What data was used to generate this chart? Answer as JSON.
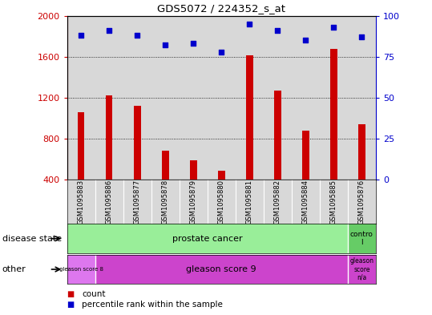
{
  "title": "GDS5072 / 224352_s_at",
  "samples": [
    "GSM1095883",
    "GSM1095886",
    "GSM1095877",
    "GSM1095878",
    "GSM1095879",
    "GSM1095880",
    "GSM1095881",
    "GSM1095882",
    "GSM1095884",
    "GSM1095885",
    "GSM1095876"
  ],
  "counts": [
    1060,
    1220,
    1120,
    680,
    590,
    490,
    1610,
    1270,
    880,
    1680,
    940
  ],
  "percentiles": [
    88,
    91,
    88,
    82,
    83,
    78,
    95,
    91,
    85,
    93,
    87
  ],
  "ylim_left": [
    400,
    2000
  ],
  "ylim_right": [
    0,
    100
  ],
  "yticks_left": [
    400,
    800,
    1200,
    1600,
    2000
  ],
  "yticks_right": [
    0,
    25,
    50,
    75,
    100
  ],
  "bar_color": "#cc0000",
  "scatter_color": "#0000cc",
  "bg_color": "#d8d8d8",
  "disease_state_color_green": "#99ee99",
  "disease_state_color_green2": "#66cc66",
  "other_color_light": "#dd77ee",
  "other_color_main": "#cc44cc",
  "legend_count_label": "count",
  "legend_pct_label": "percentile rank within the sample"
}
